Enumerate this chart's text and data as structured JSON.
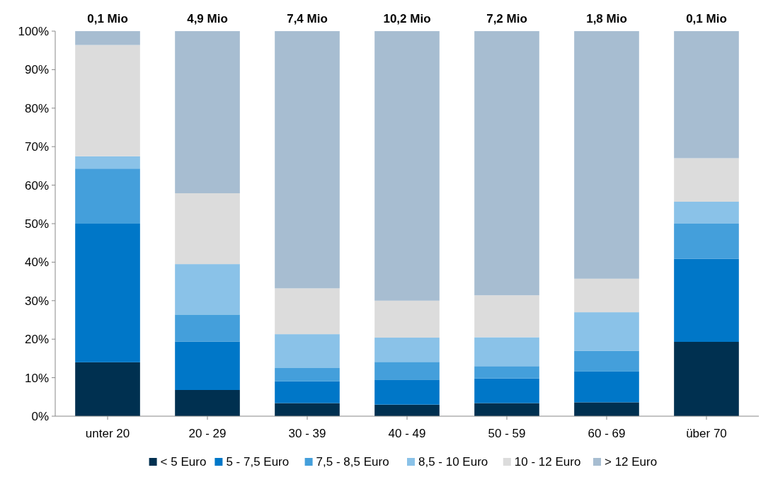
{
  "chart_data": {
    "type": "bar",
    "stacked": true,
    "categories": [
      "unter 20",
      "20 - 29",
      "30 - 39",
      "40 - 49",
      "50 - 59",
      "60 - 69",
      "über 70"
    ],
    "series": [
      {
        "name": "< 5 Euro",
        "color": "#003050",
        "values": [
          14,
          6.8,
          3.4,
          3,
          3.4,
          3.6,
          19.3
        ]
      },
      {
        "name": "5 - 7,5 Euro",
        "color": "#0077c8",
        "values": [
          36,
          12.6,
          5.7,
          6.5,
          6.4,
          8,
          21.6
        ]
      },
      {
        "name": "7,5 - 8,5 Euro",
        "color": "#449fdb",
        "values": [
          14.3,
          7,
          3.4,
          4.6,
          3.2,
          5.4,
          9.1
        ]
      },
      {
        "name": "8,5 - 10 Euro",
        "color": "#8ac2e8",
        "values": [
          3.2,
          13.1,
          8.8,
          6.3,
          7.5,
          10,
          5.7
        ]
      },
      {
        "name": "10 - 12 Euro",
        "color": "#dcdcdc",
        "values": [
          28.9,
          18.4,
          11.9,
          9.6,
          10.9,
          8.7,
          11.3
        ]
      },
      {
        "name": "> 12 Euro",
        "color": "#a7bdd1",
        "values": [
          3.6,
          42.1,
          66.8,
          70,
          68.6,
          64.3,
          33
        ]
      }
    ],
    "annotations": [
      {
        "text": "0,1 Mio",
        "x": "unter 20",
        "y": 100
      },
      {
        "text": "4,9 Mio",
        "x": "20 - 29",
        "y": 100
      },
      {
        "text": "7,4 Mio",
        "x": "30 - 39",
        "y": 100
      },
      {
        "text": "10,2 Mio",
        "x": "40 - 49",
        "y": 100
      },
      {
        "text": "7,2 Mio",
        "x": "50 - 59",
        "y": 100
      },
      {
        "text": "1,8 Mio",
        "x": "60 - 69",
        "y": 100
      },
      {
        "text": "0,1 Mio",
        "x": "über 70",
        "y": 100
      }
    ],
    "ylim": [
      0,
      100
    ],
    "yticks": [
      {
        "value": 0,
        "label": "0%"
      },
      {
        "value": 10,
        "label": "10%"
      },
      {
        "value": 20,
        "label": "20%"
      },
      {
        "value": 30,
        "label": "30%"
      },
      {
        "value": 40,
        "label": "40%"
      },
      {
        "value": 50,
        "label": "50%"
      },
      {
        "value": 60,
        "label": "60%"
      },
      {
        "value": 70,
        "label": "70%"
      },
      {
        "value": 80,
        "label": "80%"
      },
      {
        "value": 90,
        "label": "90%"
      },
      {
        "value": 100,
        "label": "100%"
      }
    ],
    "grid": false,
    "legend": "bottom"
  }
}
